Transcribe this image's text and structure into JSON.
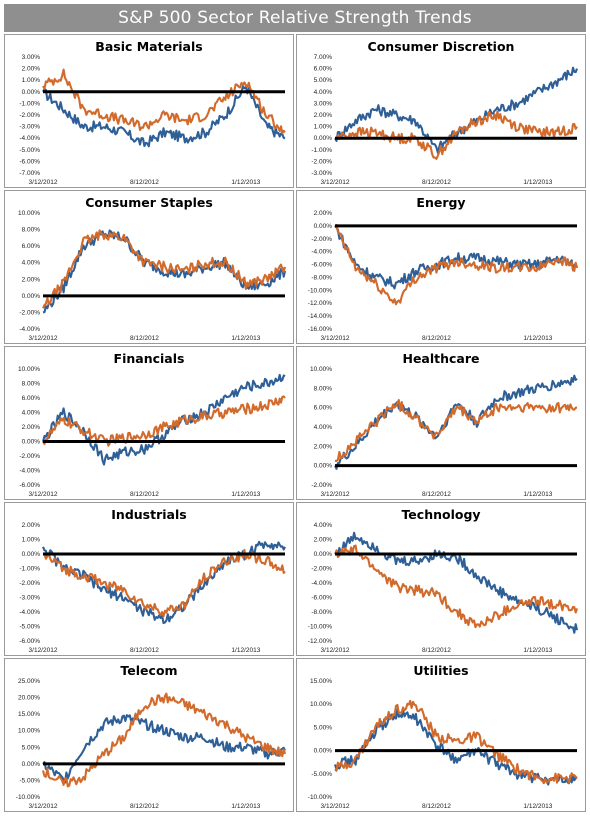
{
  "title": "S&P 500 Sector Relative Strength Trends",
  "colors": {
    "series_a": "#2e5f96",
    "series_b": "#d26a2c",
    "zero_line": "#000000"
  },
  "chart_data": [
    {
      "type": "line",
      "title": "Basic Materials",
      "x_tick_labels": [
        "3/12/2012",
        "8/12/2012",
        "1/12/2013"
      ],
      "y_tick_labels": [
        "3.00%",
        "2.00%",
        "1.00%",
        "0.00%",
        "-1.00%",
        "-2.00%",
        "-3.00%",
        "-4.00%",
        "-5.00%",
        "-6.00%",
        "-7.00%"
      ],
      "ylim": [
        -7,
        3
      ],
      "series": [
        {
          "color": "#2e5f96",
          "x": [
            "3/12/2012",
            "4/12/2012",
            "5/12/2012",
            "6/12/2012",
            "7/12/2012",
            "8/12/2012",
            "9/12/2012",
            "10/12/2012",
            "11/12/2012",
            "12/12/2012",
            "1/12/2013",
            "2/12/2013",
            "3/12/2013"
          ],
          "values": [
            0.0,
            -1.5,
            -3.0,
            -3.0,
            -3.5,
            -4.5,
            -3.5,
            -4.0,
            -3.5,
            -2.0,
            0.5,
            -3.0,
            -4.0
          ]
        },
        {
          "color": "#d26a2c",
          "x": [
            "3/12/2012",
            "4/12/2012",
            "5/12/2012",
            "6/12/2012",
            "7/12/2012",
            "8/12/2012",
            "9/12/2012",
            "10/12/2012",
            "11/12/2012",
            "12/12/2012",
            "1/12/2013",
            "2/12/2013",
            "3/12/2013"
          ],
          "values": [
            0.5,
            1.5,
            -1.5,
            -2.0,
            -2.5,
            -3.0,
            -2.0,
            -2.5,
            -2.0,
            -0.5,
            1.0,
            -2.0,
            -3.5
          ]
        }
      ]
    },
    {
      "type": "line",
      "title": "Consumer Discretion",
      "x_tick_labels": [
        "3/12/2012",
        "8/12/2012",
        "1/12/2013"
      ],
      "y_tick_labels": [
        "7.00%",
        "6.00%",
        "5.00%",
        "4.00%",
        "3.00%",
        "2.00%",
        "1.00%",
        "0.00%",
        "-1.00%",
        "-2.00%",
        "-3.00%"
      ],
      "ylim": [
        -3,
        7
      ],
      "series": [
        {
          "color": "#2e5f96",
          "x": [
            "3/12/2012",
            "4/12/2012",
            "5/12/2012",
            "6/12/2012",
            "7/12/2012",
            "8/12/2012",
            "9/12/2012",
            "10/12/2012",
            "11/12/2012",
            "12/12/2012",
            "1/12/2013",
            "2/12/2013",
            "3/12/2013"
          ],
          "values": [
            0.0,
            1.5,
            2.5,
            2.0,
            1.5,
            -1.0,
            0.5,
            1.5,
            2.5,
            3.0,
            4.0,
            5.0,
            6.0
          ]
        },
        {
          "color": "#d26a2c",
          "x": [
            "3/12/2012",
            "4/12/2012",
            "5/12/2012",
            "6/12/2012",
            "7/12/2012",
            "8/12/2012",
            "9/12/2012",
            "10/12/2012",
            "11/12/2012",
            "12/12/2012",
            "1/12/2013",
            "2/12/2013",
            "3/12/2013"
          ],
          "values": [
            0.0,
            0.5,
            0.5,
            0.0,
            0.0,
            -1.5,
            0.5,
            1.5,
            2.0,
            1.0,
            0.5,
            0.5,
            1.0
          ]
        }
      ]
    },
    {
      "type": "line",
      "title": "Consumer Staples",
      "x_tick_labels": [
        "3/12/2012",
        "8/12/2012",
        "1/12/2013"
      ],
      "y_tick_labels": [
        "10.00%",
        "8.00%",
        "6.00%",
        "4.00%",
        "2.00%",
        "0.00%",
        "-2.00%",
        "-4.00%"
      ],
      "ylim": [
        -4,
        10
      ],
      "series": [
        {
          "color": "#2e5f96",
          "x": [
            "3/12/2012",
            "4/12/2012",
            "5/12/2012",
            "6/12/2012",
            "7/12/2012",
            "8/12/2012",
            "9/12/2012",
            "10/12/2012",
            "11/12/2012",
            "12/12/2012",
            "1/12/2013",
            "2/12/2013",
            "3/12/2013"
          ],
          "values": [
            -2.0,
            1.0,
            6.0,
            7.5,
            7.0,
            4.0,
            3.0,
            2.5,
            3.5,
            4.0,
            1.0,
            1.5,
            3.0
          ]
        },
        {
          "color": "#d26a2c",
          "x": [
            "3/12/2012",
            "4/12/2012",
            "5/12/2012",
            "6/12/2012",
            "7/12/2012",
            "8/12/2012",
            "9/12/2012",
            "10/12/2012",
            "11/12/2012",
            "12/12/2012",
            "1/12/2013",
            "2/12/2013",
            "3/12/2013"
          ],
          "values": [
            -1.5,
            1.5,
            6.5,
            7.5,
            7.0,
            4.0,
            3.5,
            3.0,
            4.0,
            4.0,
            1.5,
            2.0,
            3.5
          ]
        }
      ]
    },
    {
      "type": "line",
      "title": "Energy",
      "x_tick_labels": [
        "3/12/2012",
        "8/12/2012",
        "1/12/2013"
      ],
      "y_tick_labels": [
        "2.00%",
        "0.00%",
        "-2.00%",
        "-4.00%",
        "-6.00%",
        "-8.00%",
        "-10.00%",
        "-12.00%",
        "-14.00%",
        "-16.00%"
      ],
      "ylim": [
        -16,
        2
      ],
      "series": [
        {
          "color": "#2e5f96",
          "x": [
            "3/12/2012",
            "4/12/2012",
            "5/12/2012",
            "6/12/2012",
            "7/12/2012",
            "8/12/2012",
            "9/12/2012",
            "10/12/2012",
            "11/12/2012",
            "12/12/2012",
            "1/12/2013",
            "2/12/2013",
            "3/12/2013"
          ],
          "values": [
            0.0,
            -6.0,
            -8.0,
            -9.0,
            -7.0,
            -6.0,
            -5.0,
            -5.0,
            -5.5,
            -6.0,
            -6.0,
            -5.0,
            -6.5
          ]
        },
        {
          "color": "#d26a2c",
          "x": [
            "3/12/2012",
            "4/12/2012",
            "5/12/2012",
            "6/12/2012",
            "7/12/2012",
            "8/12/2012",
            "9/12/2012",
            "10/12/2012",
            "11/12/2012",
            "12/12/2012",
            "1/12/2013",
            "2/12/2013",
            "3/12/2013"
          ],
          "values": [
            0.0,
            -6.5,
            -9.0,
            -12.0,
            -8.0,
            -6.5,
            -5.5,
            -6.0,
            -6.5,
            -6.5,
            -6.5,
            -5.0,
            -6.5
          ]
        }
      ]
    },
    {
      "type": "line",
      "title": "Financials",
      "x_tick_labels": [
        "3/12/2012",
        "8/12/2012",
        "1/12/2013"
      ],
      "y_tick_labels": [
        "10.00%",
        "8.00%",
        "6.00%",
        "4.00%",
        "2.00%",
        "0.00%",
        "-2.00%",
        "-4.00%",
        "-6.00%"
      ],
      "ylim": [
        -6,
        10
      ],
      "series": [
        {
          "color": "#2e5f96",
          "x": [
            "3/12/2012",
            "4/12/2012",
            "5/12/2012",
            "6/12/2012",
            "7/12/2012",
            "8/12/2012",
            "9/12/2012",
            "10/12/2012",
            "11/12/2012",
            "12/12/2012",
            "1/12/2013",
            "2/12/2013",
            "3/12/2013"
          ],
          "values": [
            0.0,
            4.0,
            1.5,
            -2.5,
            -1.5,
            -1.0,
            1.0,
            3.0,
            4.0,
            6.0,
            7.5,
            8.0,
            9.0
          ]
        },
        {
          "color": "#d26a2c",
          "x": [
            "3/12/2012",
            "4/12/2012",
            "5/12/2012",
            "6/12/2012",
            "7/12/2012",
            "8/12/2012",
            "9/12/2012",
            "10/12/2012",
            "11/12/2012",
            "12/12/2012",
            "1/12/2013",
            "2/12/2013",
            "3/12/2013"
          ],
          "values": [
            0.0,
            3.0,
            1.5,
            0.0,
            0.5,
            1.0,
            2.0,
            3.0,
            3.5,
            4.0,
            4.5,
            5.0,
            6.0
          ]
        }
      ]
    },
    {
      "type": "line",
      "title": "Healthcare",
      "x_tick_labels": [
        "3/12/2012",
        "8/12/2012",
        "1/12/2013"
      ],
      "y_tick_labels": [
        "10.00%",
        "8.00%",
        "6.00%",
        "4.00%",
        "2.00%",
        "0.00%",
        "-2.00%"
      ],
      "ylim": [
        -2,
        10
      ],
      "series": [
        {
          "color": "#2e5f96",
          "x": [
            "3/12/2012",
            "4/12/2012",
            "5/12/2012",
            "6/12/2012",
            "7/12/2012",
            "8/12/2012",
            "9/12/2012",
            "10/12/2012",
            "11/12/2012",
            "12/12/2012",
            "1/12/2013",
            "2/12/2013",
            "3/12/2013"
          ],
          "values": [
            0.0,
            2.0,
            4.5,
            6.5,
            5.0,
            3.0,
            6.5,
            4.5,
            7.0,
            7.5,
            8.0,
            8.5,
            9.0
          ]
        },
        {
          "color": "#d26a2c",
          "x": [
            "3/12/2012",
            "4/12/2012",
            "5/12/2012",
            "6/12/2012",
            "7/12/2012",
            "8/12/2012",
            "9/12/2012",
            "10/12/2012",
            "11/12/2012",
            "12/12/2012",
            "1/12/2013",
            "2/12/2013",
            "3/12/2013"
          ],
          "values": [
            0.5,
            2.5,
            4.5,
            6.5,
            5.0,
            3.0,
            6.0,
            4.5,
            6.0,
            6.0,
            6.0,
            6.0,
            6.0
          ]
        }
      ]
    },
    {
      "type": "line",
      "title": "Industrials",
      "x_tick_labels": [
        "3/12/2012",
        "8/12/2012",
        "1/12/2013"
      ],
      "y_tick_labels": [
        "2.00%",
        "1.00%",
        "0.00%",
        "-1.00%",
        "-2.00%",
        "-3.00%",
        "-4.00%",
        "-5.00%",
        "-6.00%"
      ],
      "ylim": [
        -6,
        2
      ],
      "series": [
        {
          "color": "#2e5f96",
          "x": [
            "3/12/2012",
            "4/12/2012",
            "5/12/2012",
            "6/12/2012",
            "7/12/2012",
            "8/12/2012",
            "9/12/2012",
            "10/12/2012",
            "11/12/2012",
            "12/12/2012",
            "1/12/2013",
            "2/12/2013",
            "3/12/2013"
          ],
          "values": [
            0.5,
            -1.0,
            -1.5,
            -2.5,
            -3.0,
            -4.0,
            -4.5,
            -3.5,
            -2.0,
            -0.5,
            0.0,
            0.8,
            0.5
          ]
        },
        {
          "color": "#d26a2c",
          "x": [
            "3/12/2012",
            "4/12/2012",
            "5/12/2012",
            "6/12/2012",
            "7/12/2012",
            "8/12/2012",
            "9/12/2012",
            "10/12/2012",
            "11/12/2012",
            "12/12/2012",
            "1/12/2013",
            "2/12/2013",
            "3/12/2013"
          ],
          "values": [
            0.0,
            -1.0,
            -1.5,
            -2.0,
            -2.5,
            -3.5,
            -4.0,
            -3.5,
            -1.5,
            -0.5,
            0.0,
            -0.5,
            -1.2
          ]
        }
      ]
    },
    {
      "type": "line",
      "title": "Technology",
      "x_tick_labels": [
        "3/12/2012",
        "8/12/2012",
        "1/12/2013"
      ],
      "y_tick_labels": [
        "4.00%",
        "2.00%",
        "0.00%",
        "-2.00%",
        "-4.00%",
        "-6.00%",
        "-8.00%",
        "-10.00%",
        "-12.00%"
      ],
      "ylim": [
        -12,
        4
      ],
      "series": [
        {
          "color": "#2e5f96",
          "x": [
            "3/12/2012",
            "4/12/2012",
            "5/12/2012",
            "6/12/2012",
            "7/12/2012",
            "8/12/2012",
            "9/12/2012",
            "10/12/2012",
            "11/12/2012",
            "12/12/2012",
            "1/12/2013",
            "2/12/2013",
            "3/12/2013"
          ],
          "values": [
            0.0,
            2.5,
            1.0,
            -1.0,
            -1.0,
            0.0,
            -0.5,
            -3.0,
            -5.0,
            -6.5,
            -7.5,
            -9.0,
            -10.5
          ]
        },
        {
          "color": "#d26a2c",
          "x": [
            "3/12/2012",
            "4/12/2012",
            "5/12/2012",
            "6/12/2012",
            "7/12/2012",
            "8/12/2012",
            "9/12/2012",
            "10/12/2012",
            "11/12/2012",
            "12/12/2012",
            "1/12/2013",
            "2/12/2013",
            "3/12/2013"
          ],
          "values": [
            0.0,
            0.5,
            -2.0,
            -4.5,
            -5.0,
            -5.5,
            -8.0,
            -10.0,
            -8.5,
            -7.0,
            -6.5,
            -7.0,
            -7.5
          ]
        }
      ]
    },
    {
      "type": "line",
      "title": "Telecom",
      "x_tick_labels": [
        "3/12/2012",
        "8/12/2012",
        "1/12/2013"
      ],
      "y_tick_labels": [
        "25.00%",
        "20.00%",
        "15.00%",
        "10.00%",
        "5.00%",
        "0.00%",
        "-5.00%",
        "-10.00%"
      ],
      "ylim": [
        -10,
        25
      ],
      "series": [
        {
          "color": "#2e5f96",
          "x": [
            "3/12/2012",
            "4/12/2012",
            "5/12/2012",
            "6/12/2012",
            "7/12/2012",
            "8/12/2012",
            "9/12/2012",
            "10/12/2012",
            "11/12/2012",
            "12/12/2012",
            "1/12/2013",
            "2/12/2013",
            "3/12/2013"
          ],
          "values": [
            0.0,
            -5.0,
            5.0,
            12.0,
            14.0,
            12.0,
            10.0,
            8.0,
            8.0,
            5.0,
            5.0,
            3.0,
            4.0
          ]
        },
        {
          "color": "#d26a2c",
          "x": [
            "3/12/2012",
            "4/12/2012",
            "5/12/2012",
            "6/12/2012",
            "7/12/2012",
            "8/12/2012",
            "9/12/2012",
            "10/12/2012",
            "11/12/2012",
            "12/12/2012",
            "1/12/2013",
            "2/12/2013",
            "3/12/2013"
          ],
          "values": [
            -2.0,
            -6.0,
            -4.0,
            3.0,
            8.0,
            18.0,
            20.0,
            18.0,
            15.0,
            12.0,
            8.0,
            5.0,
            3.0
          ]
        }
      ]
    },
    {
      "type": "line",
      "title": "Utilities",
      "x_tick_labels": [
        "3/12/2012",
        "8/12/2012",
        "1/12/2013"
      ],
      "y_tick_labels": [
        "15.00%",
        "10.00%",
        "5.00%",
        "0.00%",
        "-5.00%",
        "-10.00%"
      ],
      "ylim": [
        -10,
        15
      ],
      "series": [
        {
          "color": "#2e5f96",
          "x": [
            "3/12/2012",
            "4/12/2012",
            "5/12/2012",
            "6/12/2012",
            "7/12/2012",
            "8/12/2012",
            "9/12/2012",
            "10/12/2012",
            "11/12/2012",
            "12/12/2012",
            "1/12/2013",
            "2/12/2013",
            "3/12/2013"
          ],
          "values": [
            -3.0,
            -2.0,
            4.0,
            8.0,
            7.0,
            1.0,
            -2.0,
            0.0,
            -3.0,
            -5.0,
            -6.0,
            -6.5,
            -6.0
          ]
        },
        {
          "color": "#d26a2c",
          "x": [
            "3/12/2012",
            "4/12/2012",
            "5/12/2012",
            "6/12/2012",
            "7/12/2012",
            "8/12/2012",
            "9/12/2012",
            "10/12/2012",
            "11/12/2012",
            "12/12/2012",
            "1/12/2013",
            "2/12/2013",
            "3/12/2013"
          ],
          "values": [
            -4.0,
            -2.0,
            5.0,
            9.0,
            10.0,
            3.0,
            2.0,
            3.0,
            -1.0,
            -4.0,
            -6.0,
            -6.0,
            -6.0
          ]
        }
      ]
    }
  ]
}
